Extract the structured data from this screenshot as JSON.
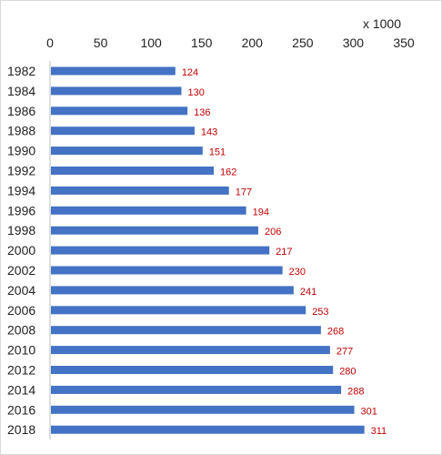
{
  "chart_data": {
    "type": "bar",
    "orientation": "horizontal",
    "unit_label": "x 1000",
    "categories": [
      "1982",
      "1984",
      "1986",
      "1988",
      "1990",
      "1992",
      "1994",
      "1996",
      "1998",
      "2000",
      "2002",
      "2004",
      "2006",
      "2008",
      "2010",
      "2012",
      "2014",
      "2016",
      "2018"
    ],
    "values": [
      124,
      130,
      136,
      143,
      151,
      162,
      177,
      194,
      206,
      217,
      230,
      241,
      253,
      268,
      277,
      280,
      288,
      301,
      311
    ],
    "xlim": [
      0,
      350
    ],
    "x_ticks": [
      0,
      50,
      100,
      150,
      200,
      250,
      300,
      350
    ],
    "x_axis_position": "top",
    "grid": false,
    "legend": "none",
    "bar_color": "#4472c4",
    "label_color": "#c00000"
  }
}
